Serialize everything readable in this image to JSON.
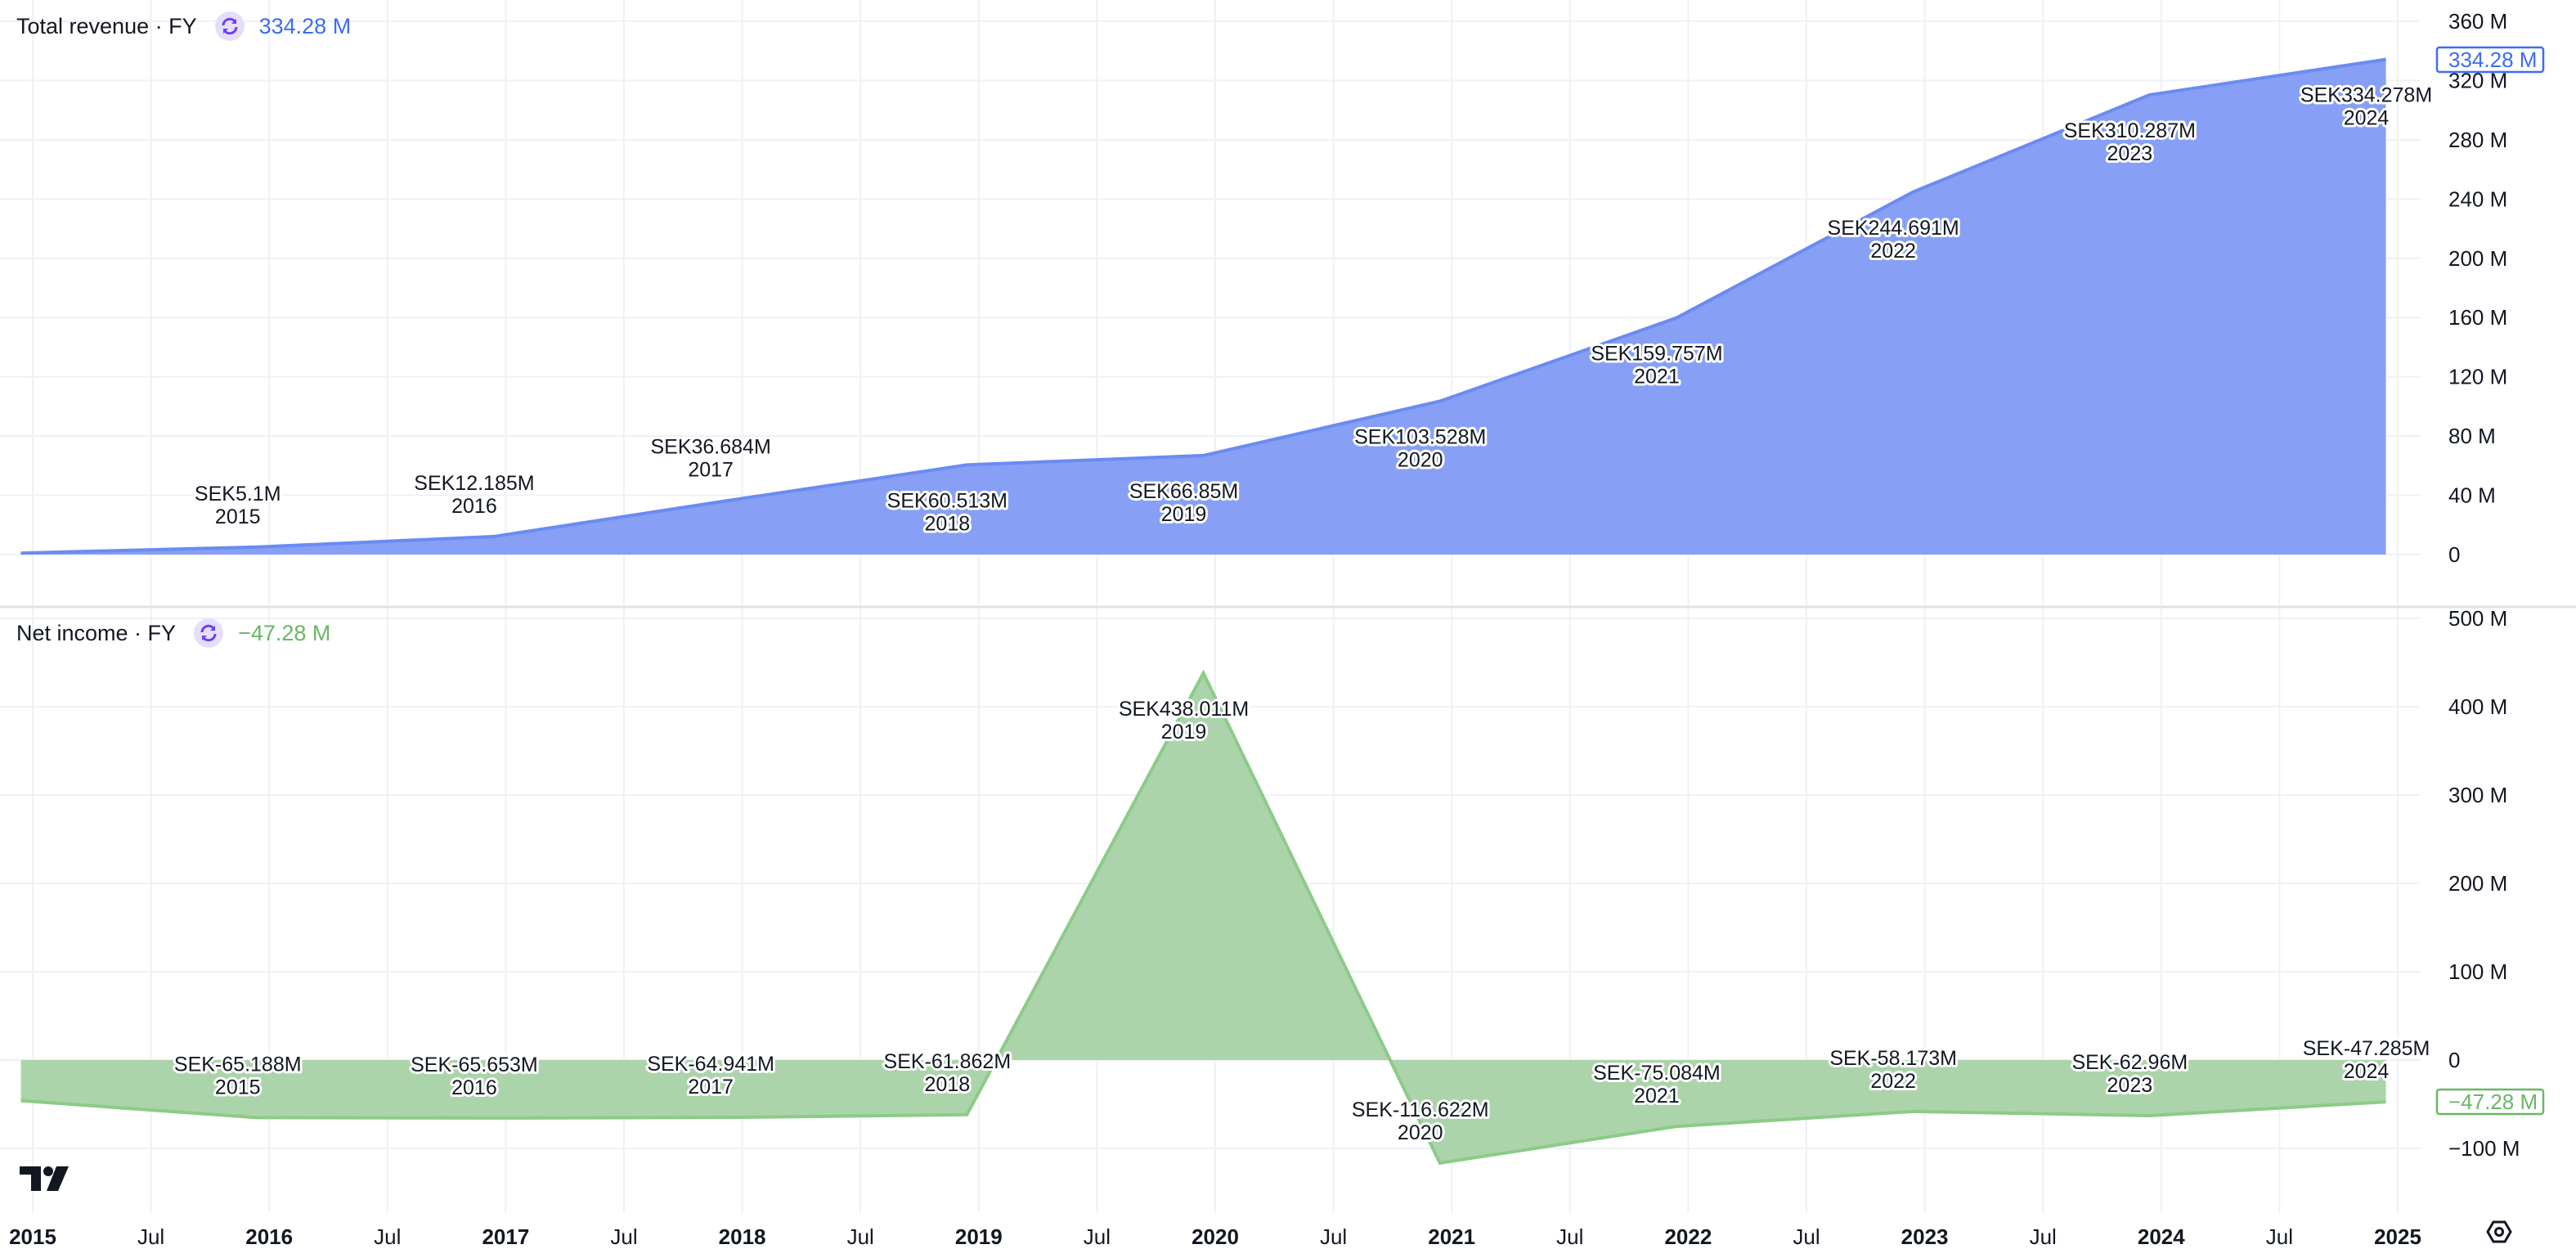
{
  "colors": {
    "revenue_line": "#6a8bf2",
    "revenue_fill": "#87a0f5",
    "revenue_text": "#3d6cf5",
    "net_line": "#8ccb88",
    "net_fill": "#acd4aa",
    "net_text": "#6ab766",
    "grid": "#f0f1f4",
    "icon_bg": "#e6defd",
    "icon_fg": "#6a3ff5"
  },
  "time_axis": {
    "labels": [
      {
        "t": 2015,
        "text": "2015",
        "bold": true
      },
      {
        "t": 2015.5,
        "text": "Jul",
        "bold": false
      },
      {
        "t": 2016,
        "text": "2016",
        "bold": true
      },
      {
        "t": 2016.5,
        "text": "Jul",
        "bold": false
      },
      {
        "t": 2017,
        "text": "2017",
        "bold": true
      },
      {
        "t": 2017.5,
        "text": "Jul",
        "bold": false
      },
      {
        "t": 2018,
        "text": "2018",
        "bold": true
      },
      {
        "t": 2018.5,
        "text": "Jul",
        "bold": false
      },
      {
        "t": 2019,
        "text": "2019",
        "bold": true
      },
      {
        "t": 2019.5,
        "text": "Jul",
        "bold": false
      },
      {
        "t": 2020,
        "text": "2020",
        "bold": true
      },
      {
        "t": 2020.5,
        "text": "Jul",
        "bold": false
      },
      {
        "t": 2021,
        "text": "2021",
        "bold": true
      },
      {
        "t": 2021.5,
        "text": "Jul",
        "bold": false
      },
      {
        "t": 2022,
        "text": "2022",
        "bold": true
      },
      {
        "t": 2022.5,
        "text": "Jul",
        "bold": false
      },
      {
        "t": 2023,
        "text": "2023",
        "bold": true
      },
      {
        "t": 2023.5,
        "text": "Jul",
        "bold": false
      },
      {
        "t": 2024,
        "text": "2024",
        "bold": true
      },
      {
        "t": 2024.5,
        "text": "Jul",
        "bold": false
      },
      {
        "t": 2025,
        "text": "2025",
        "bold": true
      }
    ]
  },
  "chart_data": [
    {
      "type": "area",
      "title": "Total revenue · FY",
      "last_value": "334.28 M",
      "price_tag": "334.28 M",
      "unit": "M SEK",
      "x": [
        2014,
        2015,
        2016,
        2017,
        2018,
        2019,
        2020,
        2021,
        2022,
        2023,
        2024
      ],
      "values": [
        1,
        5.1,
        12.185,
        36.684,
        60.513,
        66.85,
        103.528,
        159.757,
        244.691,
        310.287,
        334.278
      ],
      "point_labels": [
        "",
        "SEK5.1M",
        "SEK12.185M",
        "SEK36.684M",
        "SEK60.513M",
        "SEK66.85M",
        "SEK103.528M",
        "SEK159.757M",
        "SEK244.691M",
        "SEK310.287M",
        "SEK334.278M"
      ],
      "year_labels": [
        "",
        "2015",
        "2016",
        "2017",
        "2018",
        "2019",
        "2020",
        "2021",
        "2022",
        "2023",
        "2024"
      ],
      "ylim": [
        0,
        360
      ],
      "yticks": [
        0,
        40,
        80,
        120,
        160,
        200,
        240,
        280,
        320,
        360
      ],
      "ytick_labels": [
        "0",
        "40 M",
        "80 M",
        "120 M",
        "160 M",
        "200 M",
        "240 M",
        "280 M",
        "320 M",
        "360 M"
      ],
      "grid": true
    },
    {
      "type": "area",
      "title": "Net income · FY",
      "last_value": "−47.28 M",
      "price_tag": "−47.28 M",
      "unit": "M SEK",
      "x": [
        2014,
        2015,
        2016,
        2017,
        2018,
        2019,
        2020,
        2021,
        2022,
        2023,
        2024
      ],
      "values": [
        -46,
        -65.188,
        -65.653,
        -64.941,
        -61.862,
        438.011,
        -116.622,
        -75.084,
        -58.173,
        -62.96,
        -47.285
      ],
      "point_labels": [
        "",
        "SEK-65.188M",
        "SEK-65.653M",
        "SEK-64.941M",
        "SEK-61.862M",
        "SEK438.011M",
        "SEK-116.622M",
        "SEK-75.084M",
        "SEK-58.173M",
        "SEK-62.96M",
        "SEK-47.285M"
      ],
      "year_labels": [
        "",
        "2015",
        "2016",
        "2017",
        "2018",
        "2019",
        "2020",
        "2021",
        "2022",
        "2023",
        "2024"
      ],
      "ylim": [
        -130,
        520
      ],
      "yticks": [
        -100,
        0,
        100,
        200,
        300,
        400,
        500
      ],
      "ytick_labels": [
        "−100 M",
        "0",
        "100 M",
        "200 M",
        "300 M",
        "400 M",
        "500 M"
      ],
      "grid": true
    }
  ]
}
